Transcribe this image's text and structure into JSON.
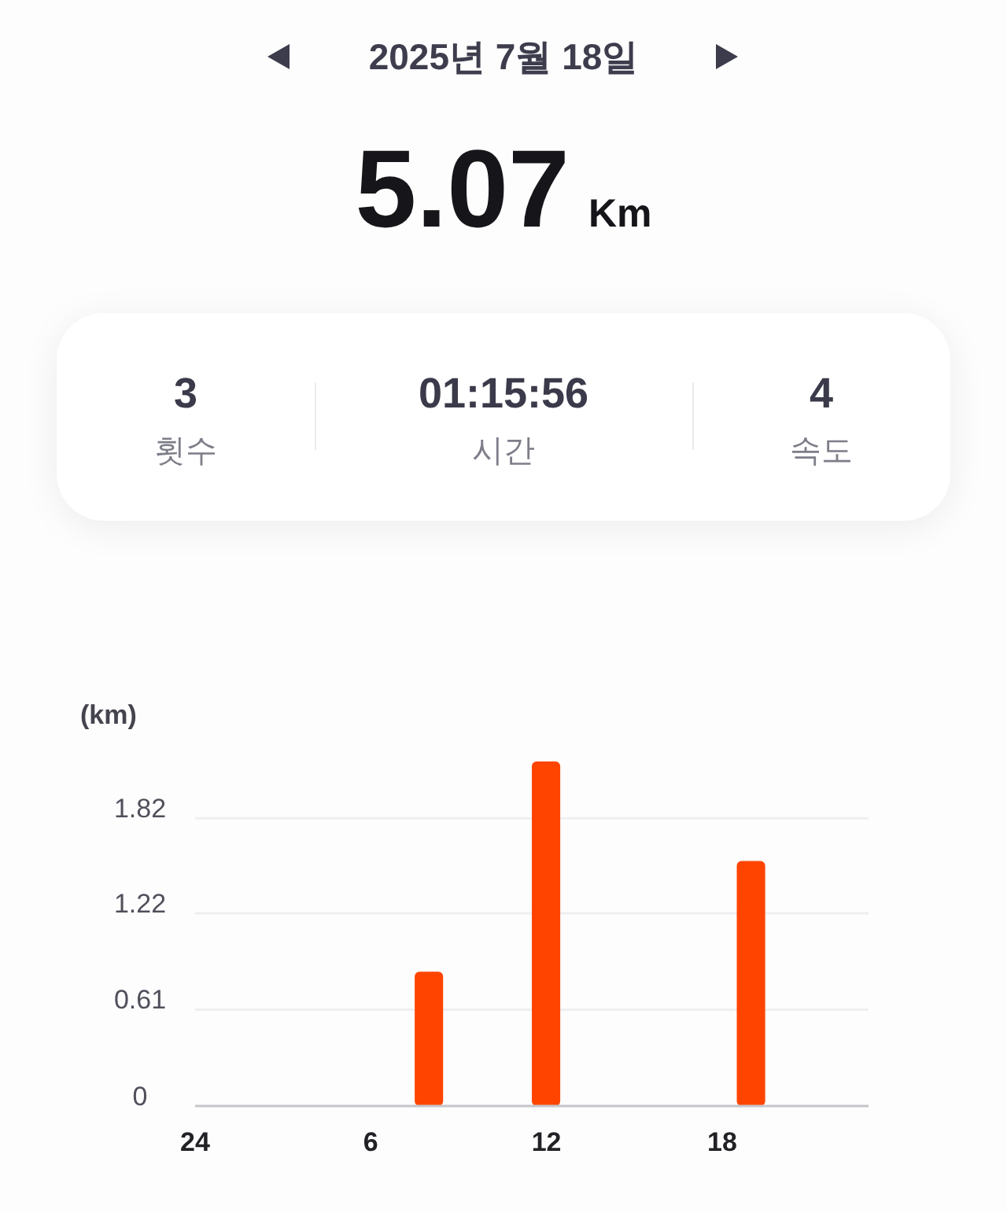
{
  "chart_data": {
    "type": "bar",
    "title": "2025년 7월 18일",
    "annotations": [
      "5.07",
      "Km",
      "3",
      "횟수",
      "01:15:56",
      "시간",
      "4",
      "속도"
    ],
    "ylabel": "(km)",
    "categories": [
      "24",
      null,
      null,
      null,
      null,
      null,
      "6",
      null,
      null,
      null,
      null,
      null,
      "12",
      null,
      null,
      null,
      null,
      null,
      "18",
      null,
      null,
      null,
      null,
      null
    ],
    "series": [
      {
        "color": "#ff4400",
        "values": [
          null,
          null,
          null,
          null,
          null,
          null,
          null,
          null,
          0.85,
          null,
          null,
          null,
          2.18,
          null,
          null,
          null,
          null,
          null,
          null,
          1.55,
          null,
          null,
          null,
          null
        ]
      }
    ],
    "ylim": [
      0,
      2.18
    ],
    "yticks": [
      0,
      0.61,
      1.22,
      1.82
    ],
    "grid": "y"
  }
}
